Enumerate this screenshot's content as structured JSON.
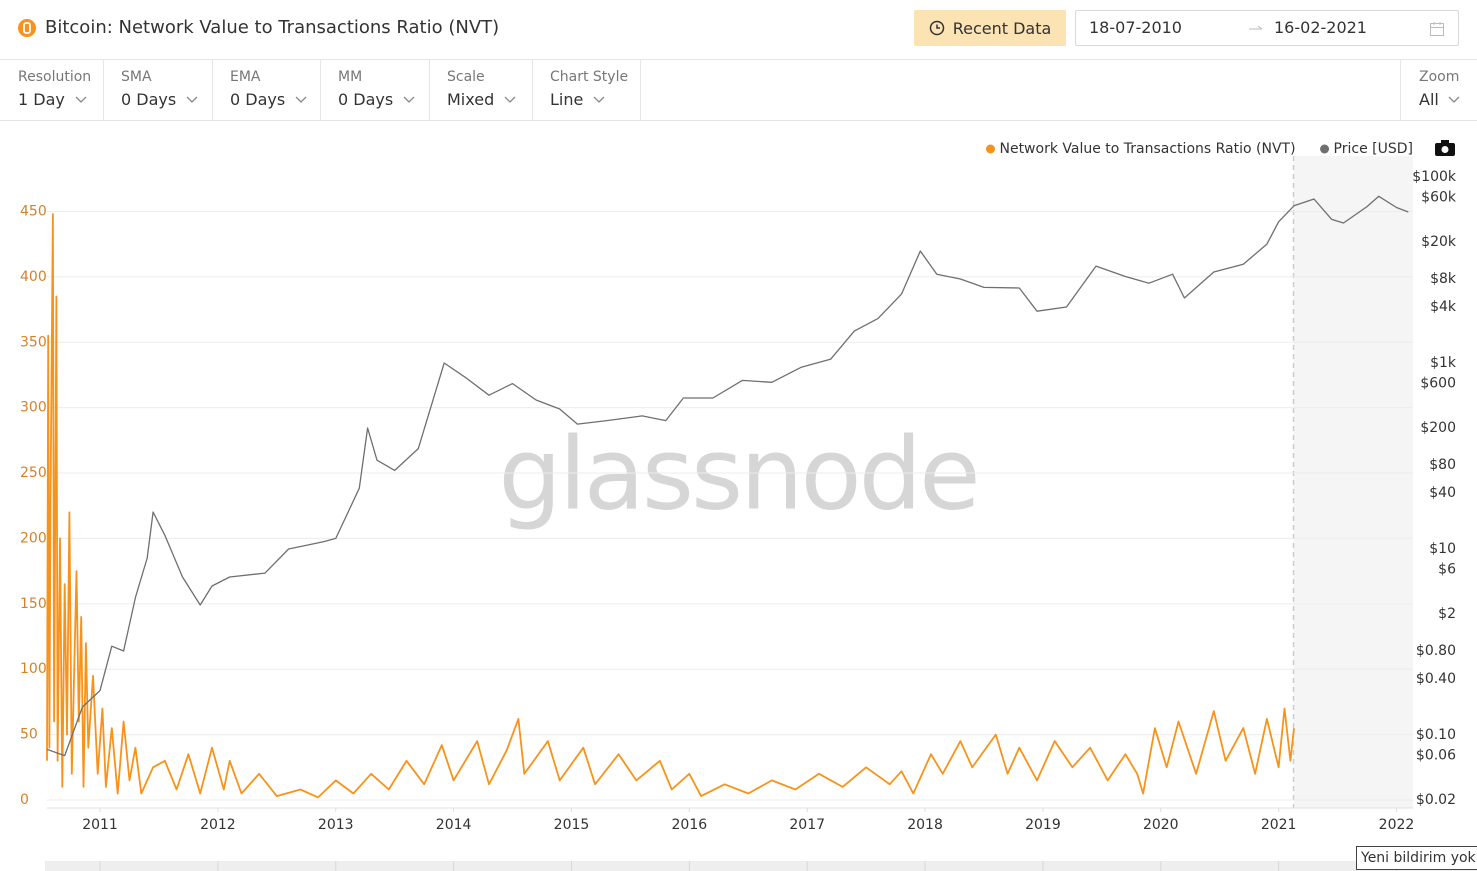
{
  "header": {
    "title": "Bitcoin: Network Value to Transactions Ratio (NVT)",
    "recent_button": "Recent Data",
    "date_from": "18-07-2010",
    "date_to": "16-02-2021"
  },
  "toolbar": [
    {
      "label": "Resolution",
      "value": "1 Day"
    },
    {
      "label": "SMA",
      "value": "0 Days"
    },
    {
      "label": "EMA",
      "value": "0 Days"
    },
    {
      "label": "MM",
      "value": "0 Days"
    },
    {
      "label": "Scale",
      "value": "Mixed"
    },
    {
      "label": "Chart Style",
      "value": "Line"
    }
  ],
  "zoom": {
    "label": "Zoom",
    "value": "All"
  },
  "notification": "Yeni bildirim yok",
  "chart_data": {
    "type": "line",
    "watermark": "glassnode",
    "legend": "top-right",
    "grid": true,
    "xlim": [
      2010.55,
      2022.14
    ],
    "xticks": [
      2011,
      2012,
      2013,
      2014,
      2015,
      2016,
      2017,
      2018,
      2019,
      2020,
      2021,
      2022
    ],
    "ylim": [
      0,
      497
    ],
    "yticks": [
      0,
      50,
      100,
      150,
      200,
      250,
      300,
      350,
      400,
      450
    ],
    "y2lim": [
      0.02,
      195000
    ],
    "y2log": true,
    "y2ticks": [
      {
        "value": 0.02,
        "label": "$0.02"
      },
      {
        "value": 0.06,
        "label": "$0.06"
      },
      {
        "value": 0.1,
        "label": "$0.10"
      },
      {
        "value": 0.4,
        "label": "$0.40"
      },
      {
        "value": 0.8,
        "label": "$0.80"
      },
      {
        "value": 2,
        "label": "$2"
      },
      {
        "value": 6,
        "label": "$6"
      },
      {
        "value": 10,
        "label": "$10"
      },
      {
        "value": 40,
        "label": "$40"
      },
      {
        "value": 80,
        "label": "$80"
      },
      {
        "value": 200,
        "label": "$200"
      },
      {
        "value": 600,
        "label": "$600"
      },
      {
        "value": 1000,
        "label": "$1k"
      },
      {
        "value": 4000,
        "label": "$4k"
      },
      {
        "value": 8000,
        "label": "$8k"
      },
      {
        "value": 20000,
        "label": "$20k"
      },
      {
        "value": 60000,
        "label": "$60k"
      },
      {
        "value": 100000,
        "label": "$100k"
      }
    ],
    "series": [
      {
        "name": "Network Value to Transactions Ratio (NVT)",
        "color": "#f7931a",
        "axis": "y",
        "x": [
          2010.55,
          2010.56,
          2010.57,
          2010.58,
          2010.6,
          2010.61,
          2010.63,
          2010.64,
          2010.66,
          2010.68,
          2010.7,
          2010.72,
          2010.74,
          2010.76,
          2010.8,
          2010.82,
          2010.84,
          2010.86,
          2010.88,
          2010.9,
          2010.94,
          2010.98,
          2011.02,
          2011.05,
          2011.1,
          2011.15,
          2011.2,
          2011.25,
          2011.3,
          2011.35,
          2011.45,
          2011.55,
          2011.65,
          2011.75,
          2011.85,
          2011.95,
          2012.05,
          2012.1,
          2012.2,
          2012.35,
          2012.5,
          2012.7,
          2012.85,
          2013.0,
          2013.15,
          2013.3,
          2013.45,
          2013.6,
          2013.75,
          2013.9,
          2014.0,
          2014.2,
          2014.3,
          2014.45,
          2014.55,
          2014.6,
          2014.8,
          2014.9,
          2015.1,
          2015.2,
          2015.4,
          2015.55,
          2015.75,
          2015.85,
          2016.0,
          2016.1,
          2016.3,
          2016.5,
          2016.7,
          2016.9,
          2017.1,
          2017.3,
          2017.5,
          2017.7,
          2017.8,
          2017.9,
          2018.05,
          2018.15,
          2018.3,
          2018.4,
          2018.6,
          2018.7,
          2018.8,
          2018.95,
          2019.1,
          2019.25,
          2019.4,
          2019.55,
          2019.7,
          2019.8,
          2019.85,
          2019.95,
          2020.05,
          2020.15,
          2020.3,
          2020.45,
          2020.55,
          2020.7,
          2020.8,
          2020.9,
          2021.0,
          2021.05,
          2021.1,
          2021.13
        ],
        "values": [
          30,
          355,
          40,
          230,
          448,
          60,
          385,
          30,
          200,
          10,
          165,
          50,
          220,
          20,
          175,
          60,
          140,
          10,
          120,
          40,
          95,
          20,
          70,
          10,
          55,
          5,
          60,
          15,
          40,
          5,
          25,
          30,
          8,
          35,
          5,
          40,
          8,
          30,
          5,
          20,
          3,
          8,
          2,
          15,
          5,
          20,
          8,
          30,
          12,
          42,
          15,
          45,
          12,
          38,
          62,
          20,
          45,
          15,
          40,
          12,
          35,
          15,
          30,
          8,
          20,
          3,
          12,
          5,
          15,
          8,
          20,
          10,
          25,
          12,
          22,
          5,
          35,
          20,
          45,
          25,
          50,
          20,
          40,
          15,
          45,
          25,
          40,
          15,
          35,
          20,
          5,
          55,
          25,
          60,
          20,
          68,
          30,
          55,
          20,
          62,
          25,
          70,
          30,
          55
        ]
      },
      {
        "name": "Price [USD]",
        "color": "#6f6f6f",
        "axis": "y2",
        "x": [
          2010.55,
          2010.7,
          2010.85,
          2011.0,
          2011.1,
          2011.2,
          2011.3,
          2011.4,
          2011.45,
          2011.55,
          2011.7,
          2011.85,
          2011.95,
          2012.1,
          2012.4,
          2012.6,
          2012.9,
          2013.0,
          2013.2,
          2013.27,
          2013.35,
          2013.5,
          2013.7,
          2013.92,
          2014.1,
          2014.3,
          2014.5,
          2014.7,
          2014.9,
          2015.05,
          2015.3,
          2015.6,
          2015.8,
          2015.95,
          2016.2,
          2016.45,
          2016.7,
          2016.95,
          2017.2,
          2017.4,
          2017.6,
          2017.8,
          2017.96,
          2018.1,
          2018.3,
          2018.5,
          2018.8,
          2018.95,
          2019.2,
          2019.45,
          2019.7,
          2019.9,
          2020.1,
          2020.2,
          2020.45,
          2020.7,
          2020.9,
          2021.0,
          2021.13,
          2021.3,
          2021.45,
          2021.55,
          2021.75,
          2021.85,
          2022.0,
          2022.1
        ],
        "values": [
          0.07,
          0.06,
          0.2,
          0.3,
          0.9,
          0.8,
          3,
          8,
          25,
          14,
          5,
          2.5,
          4,
          5,
          5.5,
          10,
          12,
          13,
          45,
          200,
          90,
          70,
          120,
          1000,
          700,
          450,
          600,
          400,
          320,
          220,
          240,
          270,
          240,
          420,
          420,
          650,
          620,
          900,
          1100,
          2200,
          3000,
          5500,
          16000,
          9000,
          8000,
          6500,
          6400,
          3600,
          4000,
          11000,
          8500,
          7200,
          9000,
          5000,
          9500,
          11500,
          19000,
          33000,
          49000,
          58000,
          35000,
          32000,
          48000,
          62000,
          47000,
          42000
        ]
      }
    ]
  }
}
